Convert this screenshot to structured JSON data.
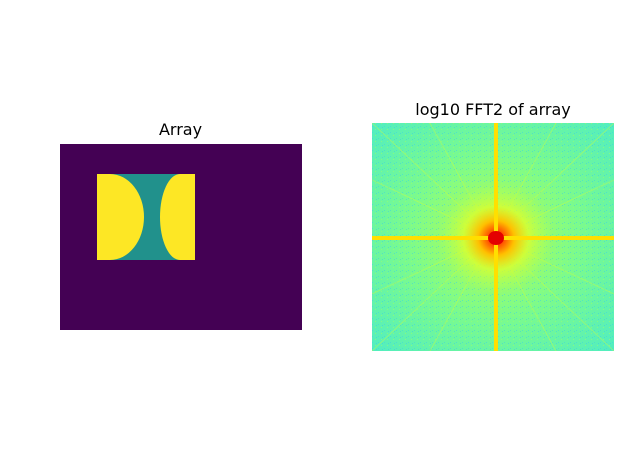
{
  "chart_data": [
    {
      "type": "heatmap",
      "title": "Array",
      "xlabel": "",
      "ylabel": "",
      "axes_visible": false,
      "colormap": "viridis",
      "colors": {
        "background": "#440154",
        "shape": "#21918c",
        "highlight": "#fde725"
      },
      "cells": [
        {
          "label": "background",
          "value": 0.0
        },
        {
          "label": "rectangle",
          "value": 0.5
        },
        {
          "label": "half-disks",
          "value": 1.0
        }
      ]
    },
    {
      "type": "heatmap",
      "title": "log10 FFT2 of array",
      "xlabel": "",
      "ylabel": "",
      "axes_visible": false,
      "colormap": "jet",
      "description_of_pattern": "bright red peak at centre with yellow horizontal and vertical cross and radiating diagonal streaks on cyan-green background",
      "colors": {
        "low": "#59f2b5",
        "mid": "#a6ff5a",
        "high": "#ffef00",
        "peak": "#e40000"
      }
    }
  ]
}
